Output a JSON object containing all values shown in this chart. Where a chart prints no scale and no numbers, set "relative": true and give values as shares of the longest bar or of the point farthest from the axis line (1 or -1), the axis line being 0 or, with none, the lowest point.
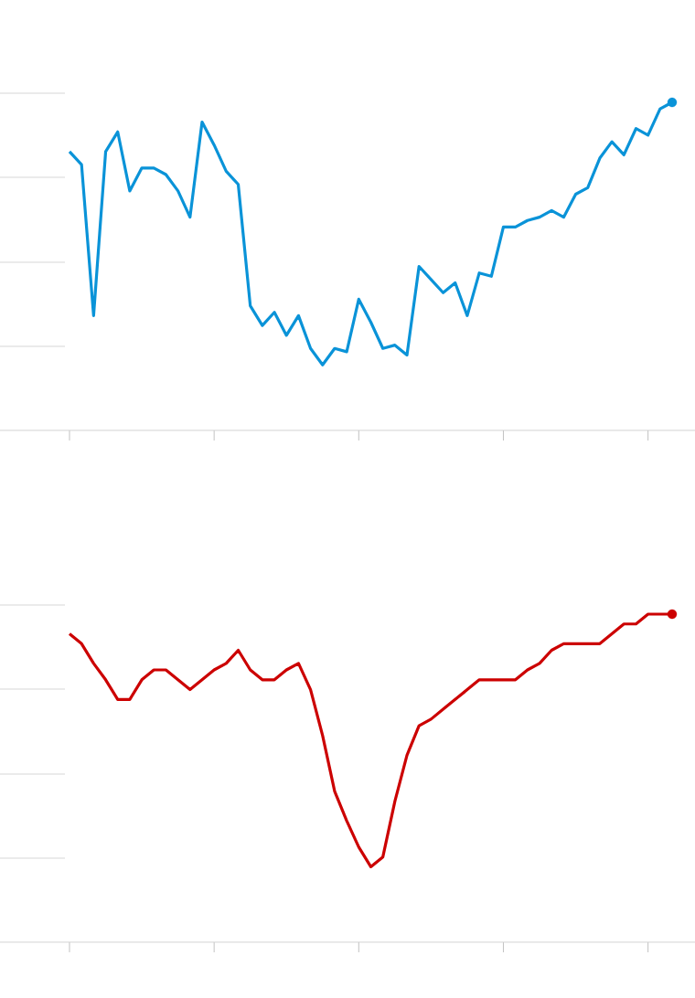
{
  "chart_data": [
    {
      "type": "line",
      "relative": true,
      "marker": "none",
      "line_style": "solid",
      "categories": [
        null,
        null,
        null,
        null,
        null,
        null,
        null,
        null,
        null,
        null,
        null,
        null,
        null,
        null,
        null,
        null,
        null,
        null,
        null,
        null,
        null,
        null,
        null,
        null,
        null,
        null,
        null,
        null,
        null,
        null,
        null,
        null,
        null,
        null,
        null,
        null,
        null,
        null,
        null,
        null,
        null,
        null,
        null,
        null,
        null,
        null,
        null,
        null,
        null,
        null,
        null
      ],
      "series": [
        {
          "color": "#0a93d8",
          "values": [
            0.85,
            0.81,
            0.35,
            0.85,
            0.91,
            0.73,
            0.8,
            0.8,
            0.78,
            0.73,
            0.65,
            0.94,
            0.87,
            0.79,
            0.75,
            0.38,
            0.32,
            0.36,
            0.29,
            0.35,
            0.25,
            0.2,
            0.25,
            0.24,
            0.4,
            0.33,
            0.25,
            0.26,
            0.23,
            0.5,
            0.46,
            0.42,
            0.45,
            0.35,
            0.48,
            0.47,
            0.62,
            0.62,
            0.64,
            0.65,
            0.67,
            0.65,
            0.72,
            0.74,
            0.83,
            0.88,
            0.84,
            0.92,
            0.9,
            0.98,
            1
          ]
        }
      ]
    },
    {
      "type": "line",
      "relative": true,
      "marker": "none",
      "line_style": "solid",
      "categories": [
        null,
        null,
        null,
        null,
        null,
        null,
        null,
        null,
        null,
        null,
        null,
        null,
        null,
        null,
        null,
        null,
        null,
        null,
        null,
        null,
        null,
        null,
        null,
        null,
        null,
        null,
        null,
        null,
        null,
        null,
        null,
        null,
        null,
        null,
        null,
        null,
        null,
        null,
        null,
        null,
        null,
        null,
        null,
        null,
        null,
        null,
        null,
        null,
        null,
        null,
        null
      ],
      "series": [
        {
          "color": "#cc0000",
          "values": [
            0.94,
            0.91,
            0.85,
            0.8,
            0.74,
            0.74,
            0.8,
            0.83,
            0.83,
            0.8,
            0.77,
            0.8,
            0.83,
            0.85,
            0.89,
            0.83,
            0.8,
            0.8,
            0.83,
            0.85,
            0.77,
            0.63,
            0.46,
            0.37,
            0.29,
            0.23,
            0.26,
            0.43,
            0.57,
            0.66,
            0.68,
            0.71,
            0.74,
            0.77,
            0.8,
            0.8,
            0.8,
            0.8,
            0.83,
            0.85,
            0.89,
            0.91,
            0.91,
            0.91,
            0.91,
            0.94,
            0.97,
            0.97,
            1,
            1,
            1
          ]
        }
      ]
    }
  ]
}
